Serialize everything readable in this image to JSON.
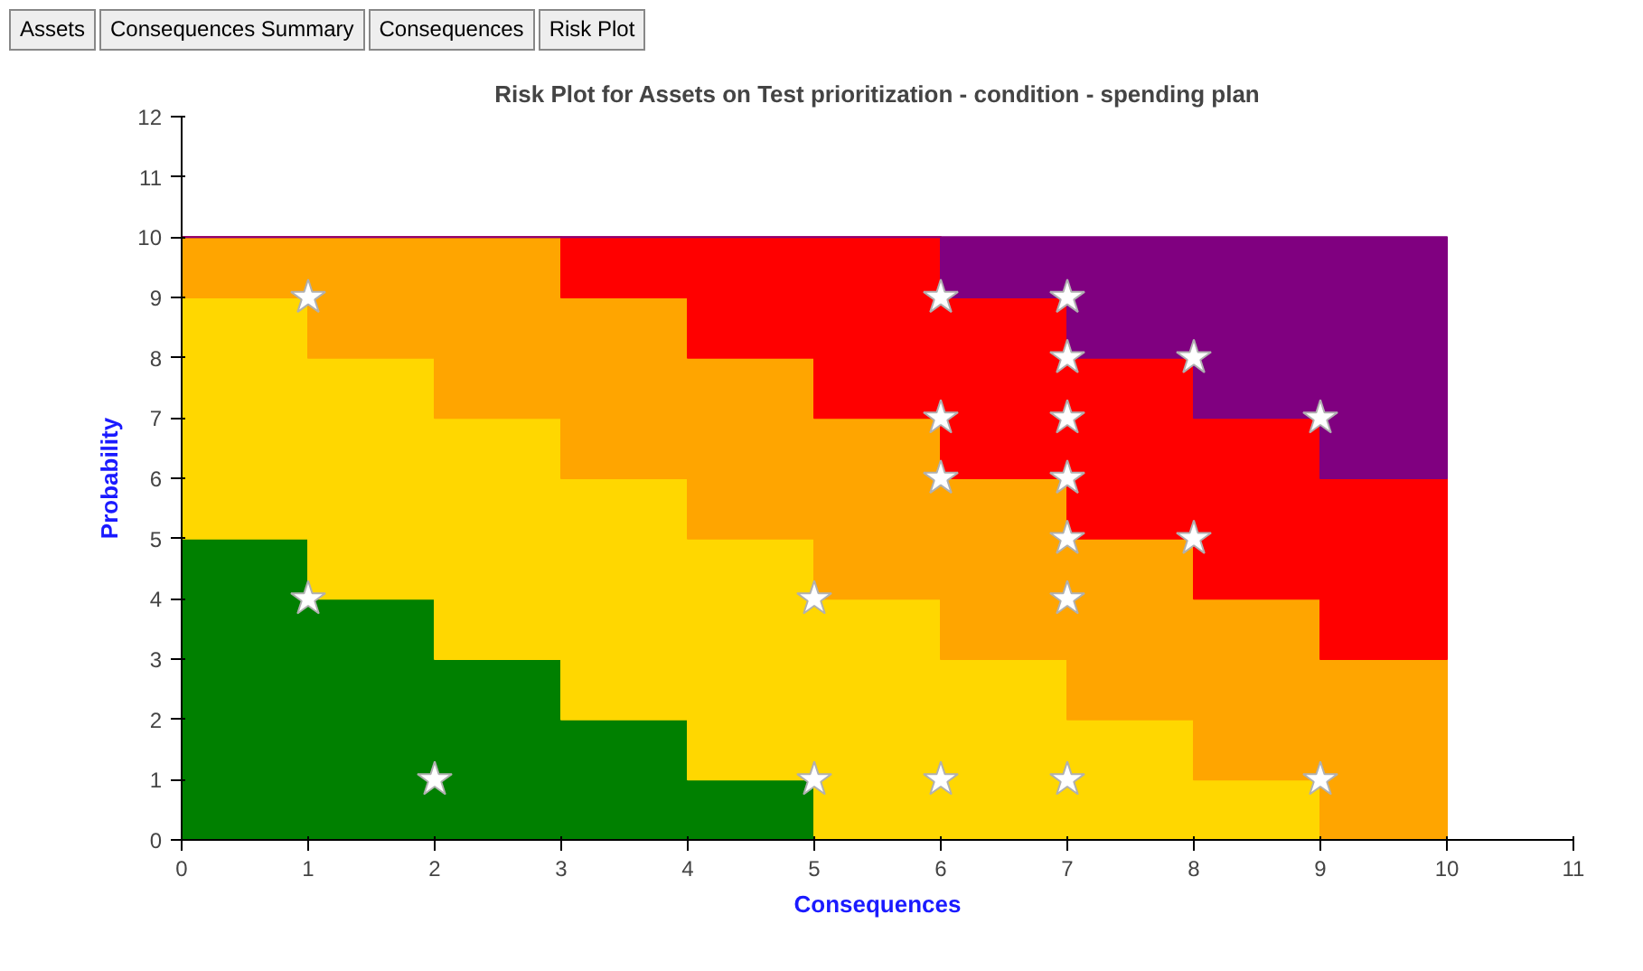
{
  "chart_data": {
    "type": "area",
    "stacked": true,
    "title": "Risk Plot for Assets on Test prioritization - condition - spending plan",
    "xlabel": "Consequences",
    "ylabel": "Probability",
    "annotations": [
      "Assets",
      "Consequences Summary",
      "Consequences",
      "Risk Plot"
    ],
    "x": [
      0,
      1,
      1,
      2,
      2,
      3,
      3,
      4,
      4,
      5,
      5,
      6,
      6,
      7,
      7,
      8,
      8,
      9,
      9,
      10
    ],
    "series": [
      {
        "color": "#008000",
        "values": [
          5,
          5,
          4,
          4,
          3,
          3,
          2,
          2,
          1,
          1,
          0,
          0,
          0,
          0,
          0,
          0,
          0,
          0,
          0,
          0
        ]
      },
      {
        "color": "#ffd700",
        "values": [
          4,
          4,
          4,
          4,
          4,
          4,
          4,
          4,
          4,
          4,
          4,
          4,
          3,
          3,
          2,
          2,
          1,
          1,
          0,
          0
        ]
      },
      {
        "color": "#ffa500",
        "values": [
          1,
          1,
          2,
          2,
          3,
          3,
          3,
          3,
          3,
          3,
          3,
          3,
          3,
          3,
          3,
          3,
          3,
          3,
          3,
          3
        ]
      },
      {
        "color": "#ff0000",
        "values": [
          0,
          0,
          0,
          0,
          0,
          0,
          1,
          1,
          2,
          2,
          3,
          3,
          3,
          3,
          3,
          3,
          3,
          3,
          3,
          3
        ]
      },
      {
        "color": "#800080",
        "values": [
          0,
          0,
          0,
          0,
          0,
          0,
          0,
          0,
          0,
          0,
          0,
          0,
          1,
          1,
          2,
          2,
          3,
          3,
          4,
          4
        ]
      },
      {
        "type": "scatter",
        "marker": "star",
        "color": "#ffffff",
        "x": [
          1,
          1,
          2,
          5,
          5,
          6,
          6,
          6,
          6,
          7,
          7,
          7,
          7,
          7,
          7,
          7,
          8,
          8,
          9,
          9
        ],
        "values": [
          9,
          4,
          1,
          4,
          1,
          9,
          7,
          6,
          1,
          9,
          8,
          7,
          6,
          5,
          4,
          1,
          8,
          5,
          7,
          1
        ]
      }
    ],
    "xlim": [
      0,
      11
    ],
    "xticks": [
      0,
      1,
      2,
      3,
      4,
      5,
      6,
      7,
      8,
      9,
      10,
      11
    ],
    "ylim": [
      0,
      12
    ],
    "yticks": [
      0,
      1,
      2,
      3,
      4,
      5,
      6,
      7,
      8,
      9,
      10,
      11,
      12
    ],
    "grid": false
  }
}
